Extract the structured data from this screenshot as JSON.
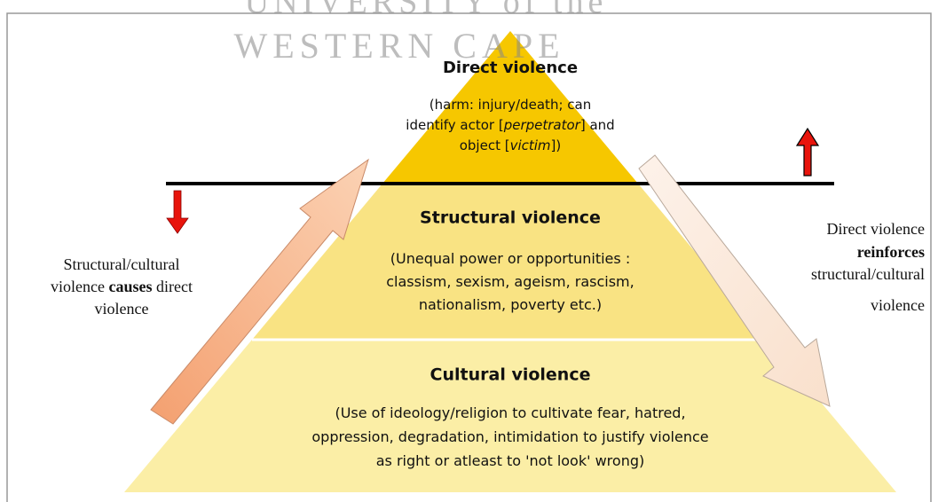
{
  "watermark": {
    "line1": "UNIVERSITY of the",
    "line2": "WESTERN CAPE"
  },
  "tiers": [
    {
      "title": "Direct violence",
      "lines": [
        [
          {
            "text": "(harm: injury/death; can"
          }
        ],
        [
          {
            "text": "identify actor ["
          },
          {
            "text": "perpetrator",
            "italic": true
          },
          {
            "text": "] and"
          }
        ],
        [
          {
            "text": "object ["
          },
          {
            "text": "victim",
            "italic": true
          },
          {
            "text": "])"
          }
        ]
      ]
    },
    {
      "title": "Structural violence",
      "lines": [
        [
          {
            "text": "(Unequal power or opportunities :"
          }
        ],
        [
          {
            "text": "classism, sexism, ageism, rascism,"
          }
        ],
        [
          {
            "text": "nationalism, poverty etc.)"
          }
        ]
      ]
    },
    {
      "title": "Cultural violence",
      "lines": [
        [
          {
            "text": "(Use of ideology/religion to cultivate fear, hatred,"
          }
        ],
        [
          {
            "text": "oppression, degradation, intimidation to justify violence"
          }
        ],
        [
          {
            "text": "as right or atleast to 'not look' wrong)"
          }
        ]
      ]
    }
  ],
  "left_note": [
    [
      {
        "text": "Structural/cultural"
      }
    ],
    [
      {
        "text": "violence "
      },
      {
        "text": "causes",
        "bold": true
      },
      {
        "text": " direct"
      }
    ],
    [
      {
        "text": "violence"
      }
    ]
  ],
  "right_note": [
    [
      {
        "text": "Direct violence"
      }
    ],
    [
      {
        "text": "reinforces",
        "bold": true
      }
    ],
    [
      {
        "text": "structural/cultural"
      }
    ],
    [
      {
        "text": "violence"
      }
    ]
  ]
}
